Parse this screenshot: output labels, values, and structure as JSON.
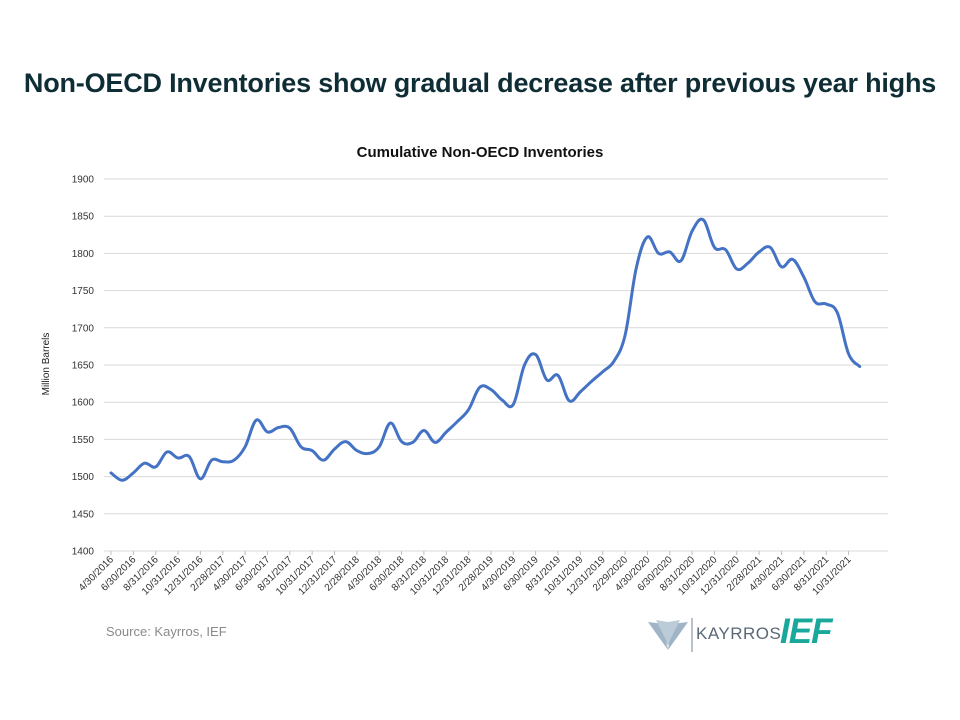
{
  "header": {
    "title": "Non-OECD Inventories show gradual decrease after previous year highs"
  },
  "source": "Source: Kayrros, IEF",
  "logos": {
    "kayrros": "KAYRROS",
    "ief": "IEF"
  },
  "colors": {
    "line": "#4472c4",
    "title": "#0f2d35",
    "ief": "#1ba89c",
    "grid": "#d9d9d9"
  },
  "chart_data": {
    "type": "line",
    "title": "Cumulative Non-OECD Inventories",
    "xlabel": "",
    "ylabel": "Million Barrels",
    "ylim": [
      1400,
      1900
    ],
    "yticks": [
      1400,
      1450,
      1500,
      1550,
      1600,
      1650,
      1700,
      1750,
      1800,
      1850,
      1900
    ],
    "grid": true,
    "legend": "none",
    "x_tick_labels": [
      "4/30/2016",
      "6/30/2016",
      "8/31/2016",
      "10/31/2016",
      "12/31/2016",
      "2/28/2017",
      "4/30/2017",
      "6/30/2017",
      "8/31/2017",
      "10/31/2017",
      "12/31/2017",
      "2/28/2018",
      "4/30/2018",
      "6/30/2018",
      "8/31/2018",
      "10/31/2018",
      "12/31/2018",
      "2/28/2019",
      "4/30/2019",
      "6/30/2019",
      "8/31/2019",
      "10/31/2019",
      "12/31/2019",
      "2/29/2020",
      "4/30/2020",
      "6/30/2020",
      "8/31/2020",
      "10/31/2020",
      "12/31/2020",
      "2/28/2021",
      "4/30/2021",
      "6/30/2021",
      "8/31/2021",
      "10/31/2021"
    ],
    "series": [
      {
        "values": [
          [
            0,
            1505
          ],
          [
            0.5,
            1495
          ],
          [
            1,
            1505
          ],
          [
            1.5,
            1518
          ],
          [
            2,
            1513
          ],
          [
            2.5,
            1533
          ],
          [
            3,
            1525
          ],
          [
            3.5,
            1527
          ],
          [
            4,
            1497
          ],
          [
            4.5,
            1522
          ],
          [
            5,
            1520
          ],
          [
            5.5,
            1522
          ],
          [
            6,
            1540
          ],
          [
            6.5,
            1576
          ],
          [
            7,
            1560
          ],
          [
            7.5,
            1566
          ],
          [
            8,
            1565
          ],
          [
            8.5,
            1540
          ],
          [
            9,
            1535
          ],
          [
            9.5,
            1522
          ],
          [
            10,
            1537
          ],
          [
            10.5,
            1547
          ],
          [
            11,
            1535
          ],
          [
            11.5,
            1531
          ],
          [
            12,
            1540
          ],
          [
            12.5,
            1572
          ],
          [
            13,
            1547
          ],
          [
            13.5,
            1546
          ],
          [
            14,
            1562
          ],
          [
            14.5,
            1546
          ],
          [
            15,
            1560
          ],
          [
            15.5,
            1574
          ],
          [
            16,
            1590
          ],
          [
            16.5,
            1620
          ],
          [
            17,
            1617
          ],
          [
            17.5,
            1603
          ],
          [
            18,
            1597
          ],
          [
            18.5,
            1650
          ],
          [
            19,
            1664
          ],
          [
            19.5,
            1630
          ],
          [
            20,
            1636
          ],
          [
            20.5,
            1602
          ],
          [
            21,
            1614
          ],
          [
            21.5,
            1628
          ],
          [
            22,
            1641
          ],
          [
            22.5,
            1655
          ],
          [
            23,
            1690
          ],
          [
            23.5,
            1780
          ],
          [
            24,
            1822
          ],
          [
            24.5,
            1800
          ],
          [
            25,
            1802
          ],
          [
            25.5,
            1790
          ],
          [
            26,
            1830
          ],
          [
            26.5,
            1845
          ],
          [
            27,
            1808
          ],
          [
            27.5,
            1805
          ],
          [
            28,
            1779
          ],
          [
            28.5,
            1787
          ],
          [
            29,
            1802
          ],
          [
            29.5,
            1808
          ],
          [
            30,
            1782
          ],
          [
            30.5,
            1792
          ],
          [
            31,
            1768
          ],
          [
            31.5,
            1735
          ],
          [
            32,
            1732
          ],
          [
            32.5,
            1720
          ],
          [
            33,
            1665
          ],
          [
            33.5,
            1648
          ]
        ]
      }
    ]
  }
}
